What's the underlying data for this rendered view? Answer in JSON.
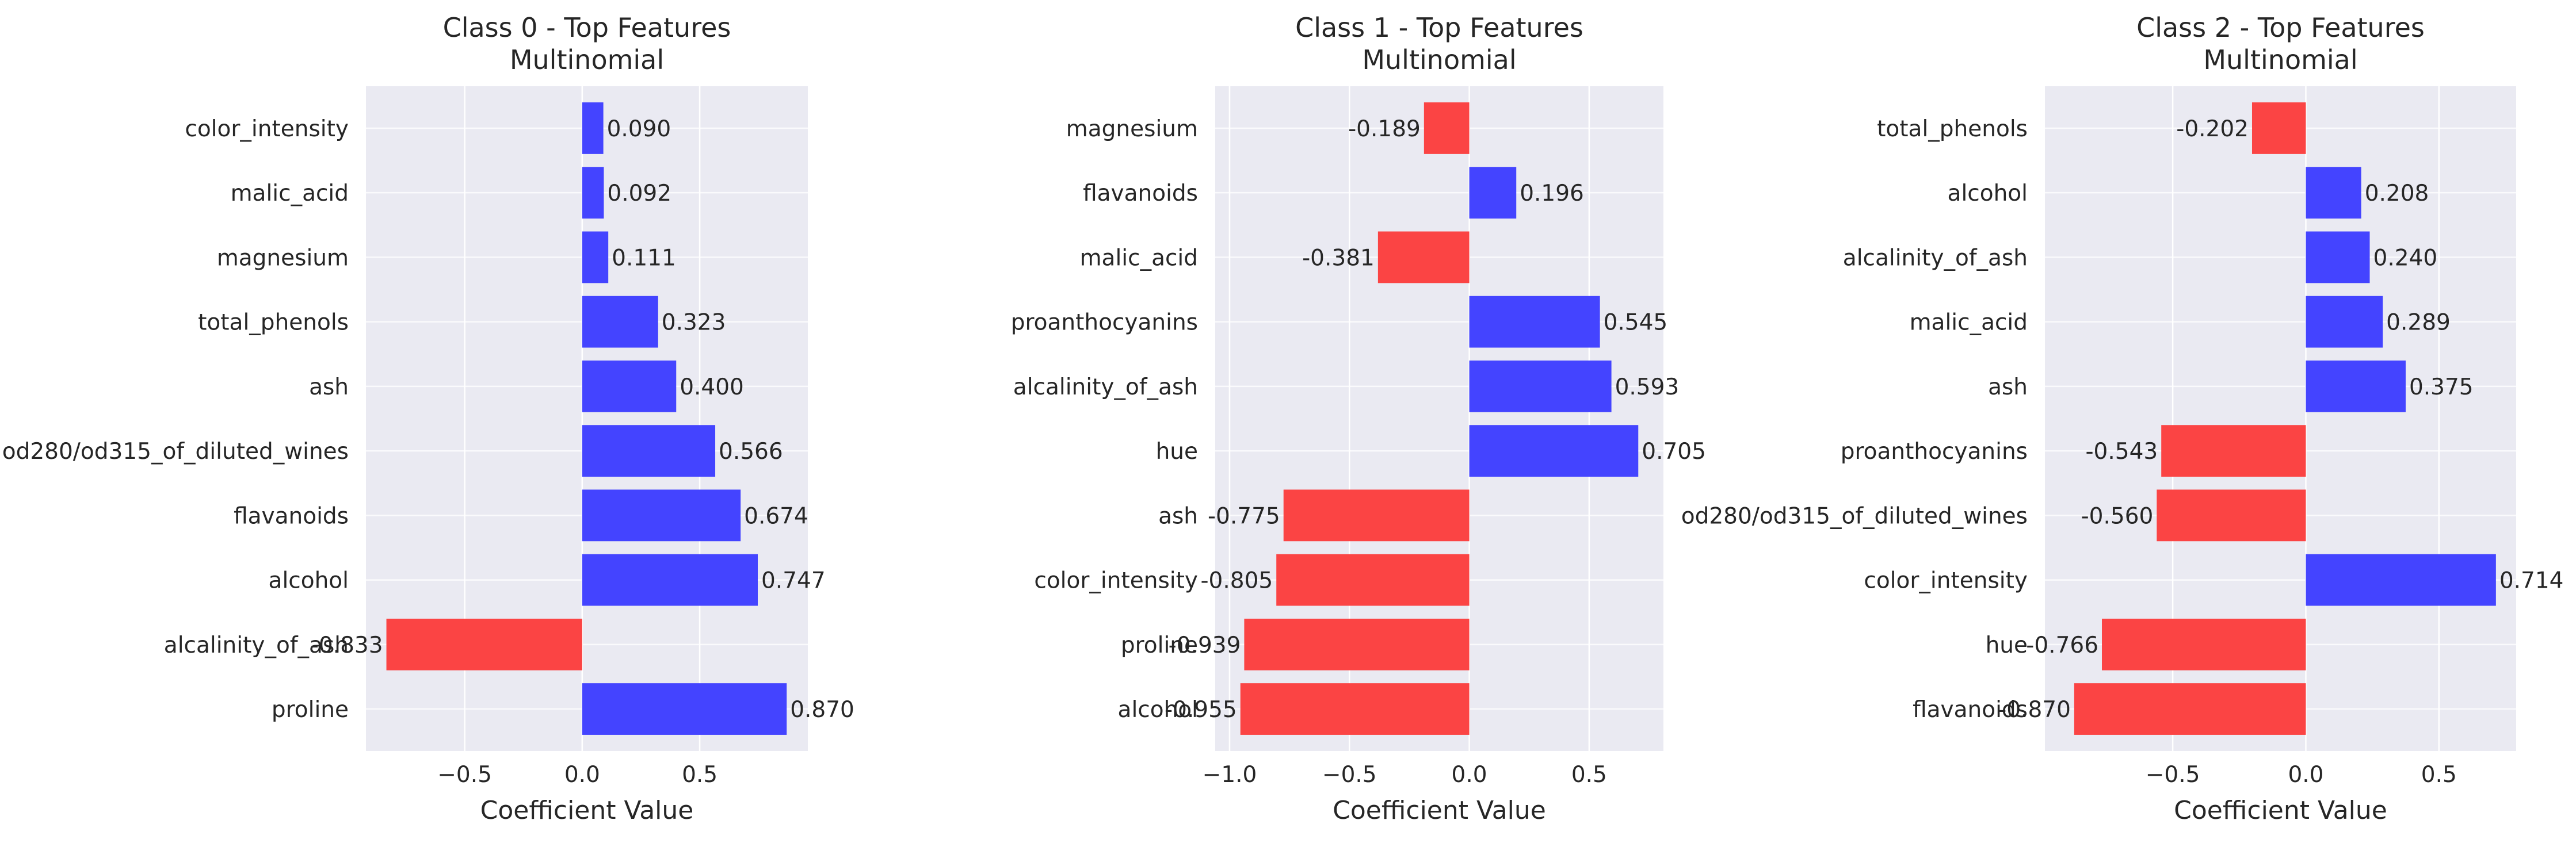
{
  "colors": {
    "positive": "#4444ff",
    "negative": "#fb4444",
    "plot_background": "#eaeaf2",
    "grid": "#ffffff",
    "text": "#262626"
  },
  "chart_data": [
    {
      "type": "bar",
      "orientation": "horizontal",
      "title": "Class 0 - Top Features",
      "subtitle": "Multinomial",
      "xlabel": "Coefficient Value",
      "ylabel": "",
      "xlim": [
        -0.92,
        0.96
      ],
      "xticks": [
        -0.5,
        0.0,
        0.5
      ],
      "xtick_labels": [
        "−0.5",
        "0.0",
        "0.5"
      ],
      "grid": true,
      "categories": [
        "color_intensity",
        "malic_acid",
        "magnesium",
        "total_phenols",
        "ash",
        "od280/od315_of_diluted_wines",
        "flavanoids",
        "alcohol",
        "alcalinity_of_ash",
        "proline"
      ],
      "values": [
        0.09,
        0.092,
        0.111,
        0.323,
        0.4,
        0.566,
        0.674,
        0.747,
        -0.833,
        0.87
      ],
      "labels": [
        "0.090",
        "0.092",
        "0.111",
        "0.323",
        "0.400",
        "0.566",
        "0.674",
        "0.747",
        "-0.833",
        "0.870"
      ]
    },
    {
      "type": "bar",
      "orientation": "horizontal",
      "title": "Class 1 - Top Features",
      "subtitle": "Multinomial",
      "xlabel": "Coefficient Value",
      "ylabel": "",
      "xlim": [
        -1.06,
        0.81
      ],
      "xticks": [
        -1.0,
        -0.5,
        0.0,
        0.5
      ],
      "xtick_labels": [
        "−1.0",
        "−0.5",
        "0.0",
        "0.5"
      ],
      "grid": true,
      "categories": [
        "magnesium",
        "flavanoids",
        "malic_acid",
        "proanthocyanins",
        "alcalinity_of_ash",
        "hue",
        "ash",
        "color_intensity",
        "proline",
        "alcohol"
      ],
      "values": [
        -0.189,
        0.196,
        -0.381,
        0.545,
        0.593,
        0.705,
        -0.775,
        -0.805,
        -0.939,
        -0.955
      ],
      "labels": [
        "-0.189",
        "0.196",
        "-0.381",
        "0.545",
        "0.593",
        "0.705",
        "-0.775",
        "-0.805",
        "-0.939",
        "-0.955"
      ]
    },
    {
      "type": "bar",
      "orientation": "horizontal",
      "title": "Class 2 - Top Features",
      "subtitle": "Multinomial",
      "xlabel": "Coefficient Value",
      "ylabel": "",
      "xlim": [
        -0.98,
        0.79
      ],
      "xticks": [
        -0.5,
        0.0,
        0.5
      ],
      "xtick_labels": [
        "−0.5",
        "0.0",
        "0.5"
      ],
      "grid": true,
      "categories": [
        "total_phenols",
        "alcohol",
        "alcalinity_of_ash",
        "malic_acid",
        "ash",
        "proanthocyanins",
        "od280/od315_of_diluted_wines",
        "color_intensity",
        "hue",
        "flavanoids"
      ],
      "values": [
        -0.202,
        0.208,
        0.24,
        0.289,
        0.375,
        -0.543,
        -0.56,
        0.714,
        -0.766,
        -0.87
      ],
      "labels": [
        "-0.202",
        "0.208",
        "0.240",
        "0.289",
        "0.375",
        "-0.543",
        "-0.560",
        "0.714",
        "-0.766",
        "-0.870"
      ]
    }
  ]
}
